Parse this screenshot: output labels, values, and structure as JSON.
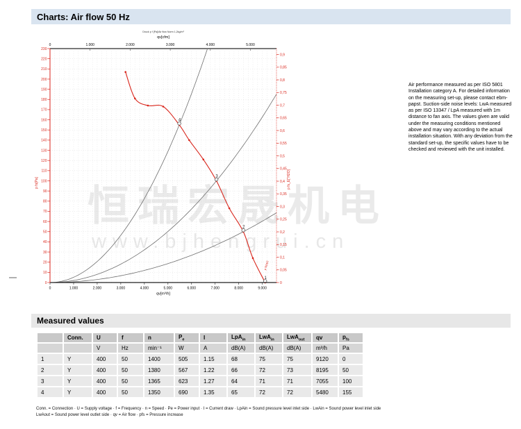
{
  "page": {
    "title": "Charts: Air flow 50 Hz"
  },
  "chart_data": {
    "type": "line",
    "subtitle_tiny": "Druck p f [Pa]/Air flow Norm 1,2kg/m³",
    "axes": {
      "top": {
        "label": "qv[cfm]",
        "max": 5650,
        "tick_step": 1000,
        "tick_max": 5000
      },
      "bottom": {
        "label": "qv[m³/h]",
        "max": 9600,
        "tick_step": 1000,
        "tick_max": 9000
      },
      "left": {
        "label": "p fs[Pa]",
        "max": 230,
        "tick_step": 10
      },
      "right": {
        "label": "p fs_E[\"H2O]",
        "tick_step": 0.05,
        "tick_max": 0.9,
        "pa_per_unit": 249.08
      }
    },
    "grid": {
      "v_step": 200,
      "h_step": 10,
      "color": "#c9c9c9"
    },
    "fan_curve": {
      "label": "p fs(qv)",
      "color": "#d9261c",
      "points": [
        [
          3200,
          207
        ],
        [
          3600,
          181
        ],
        [
          4150,
          174
        ],
        [
          4800,
          173
        ],
        [
          5480,
          155
        ],
        [
          5900,
          140
        ],
        [
          6500,
          121
        ],
        [
          7055,
          100
        ],
        [
          7600,
          73
        ],
        [
          8195,
          50
        ],
        [
          8600,
          24
        ],
        [
          9120,
          0
        ]
      ]
    },
    "operating_points": [
      {
        "n": "1",
        "qv": 9120,
        "pfs": 0
      },
      {
        "n": "2",
        "qv": 8195,
        "pfs": 50
      },
      {
        "n": "3",
        "qv": 7055,
        "pfs": 100
      },
      {
        "n": "4",
        "qv": 5480,
        "pfs": 155
      }
    ],
    "system_curves": {
      "color": "#6e6e6e",
      "through": [
        {
          "qv": 5480,
          "pfs": 155
        },
        {
          "qv": 7055,
          "pfs": 100
        },
        {
          "qv": 8195,
          "pfs": 50
        }
      ]
    }
  },
  "note_right": "Air performance measured as per ISO 5801 Installation category A. For detailed information on the measuring set-up, please contact ebm-papst. Suction-side noise levels: LwA measured as per ISO 13347 / LpA measured with 1m distance to fan axis. The values given are valid under the measuring conditions mentioned above and may vary according to the actual installation situation. With any deviation from the standard set-up, the specific values have to be checked and reviewed with the unit installed.",
  "watermark": {
    "cjk": "恒瑞宏晟机电",
    "url": "www.bjhengrui.cn"
  },
  "table": {
    "title": "Measured values",
    "headers": [
      {
        "b": "",
        "s": ""
      },
      {
        "b": "Conn.",
        "s": ""
      },
      {
        "b": "U",
        "s": ""
      },
      {
        "b": "f",
        "s": ""
      },
      {
        "b": "n",
        "s": ""
      },
      {
        "b": "P",
        "s": "e"
      },
      {
        "b": "I",
        "s": ""
      },
      {
        "b": "LpA",
        "s": "in"
      },
      {
        "b": "LwA",
        "s": "in"
      },
      {
        "b": "LwA",
        "s": "out"
      },
      {
        "b": "qv",
        "s": ""
      },
      {
        "b": "p",
        "s": "fs"
      }
    ],
    "units": [
      "",
      "",
      "V",
      "Hz",
      "min⁻¹",
      "W",
      "A",
      "dB(A)",
      "dB(A)",
      "dB(A)",
      "m³/h",
      "Pa"
    ],
    "rows": [
      [
        "1",
        "Y",
        "400",
        "50",
        "1400",
        "505",
        "1.15",
        "68",
        "75",
        "75",
        "9120",
        "0"
      ],
      [
        "2",
        "Y",
        "400",
        "50",
        "1380",
        "567",
        "1.22",
        "66",
        "72",
        "73",
        "8195",
        "50"
      ],
      [
        "3",
        "Y",
        "400",
        "50",
        "1365",
        "623",
        "1.27",
        "64",
        "71",
        "71",
        "7055",
        "100"
      ],
      [
        "4",
        "Y",
        "400",
        "50",
        "1350",
        "690",
        "1.35",
        "65",
        "72",
        "72",
        "5480",
        "155"
      ]
    ]
  },
  "footnote": {
    "line1": "Conn. = Connection · U = Supply voltage · f = Frequency · n = Speed · Pe = Power input · I = Current draw · LpAin = Sound pressure level inlet side · LwAin = Sound power level inlet side",
    "line2": "LwAout = Sound power level outlet side · qv = Air flow · pfs = Pressure increase"
  }
}
